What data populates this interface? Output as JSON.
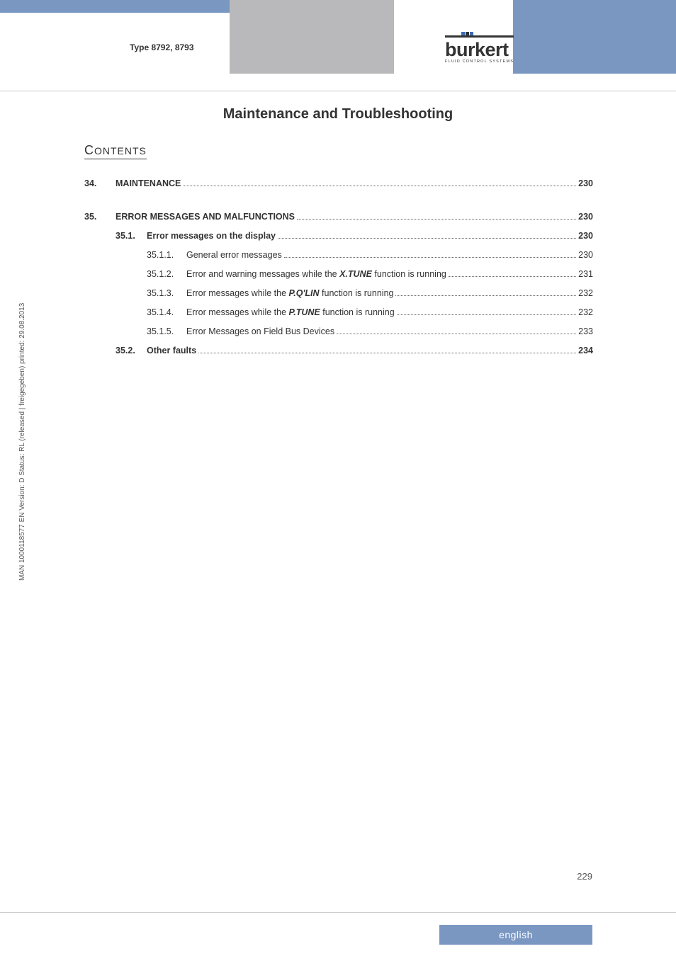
{
  "header": {
    "type_label": "Type 8792, 8793",
    "logo_text": "burkert",
    "logo_sub": "FLUID CONTROL SYSTEMS"
  },
  "title": "Maintenance and Troubleshooting",
  "contents_heading_cap": "C",
  "contents_heading_rest": "ONTENTS",
  "toc": [
    {
      "level": 1,
      "num": "34.",
      "label": "MAINTENANCE",
      "page": "230",
      "gap_after": true
    },
    {
      "level": 1,
      "num": "35.",
      "label": "ERROR MESSAGES AND MALFUNCTIONS",
      "page": "230"
    },
    {
      "level": 2,
      "num": "35.1.",
      "label": "Error messages on the display",
      "page": "230"
    },
    {
      "level": 3,
      "num": "35.1.1.",
      "label": "General error messages",
      "page": "230"
    },
    {
      "level": 3,
      "num": "35.1.2.",
      "label_pre": "Error and warning messages while the ",
      "func": "X.TUNE",
      "label_post": " function is running",
      "page": "231"
    },
    {
      "level": 3,
      "num": "35.1.3.",
      "label_pre": "Error messages while the ",
      "func": "P.Q'LIN",
      "label_post": " function is running",
      "page": "232"
    },
    {
      "level": 3,
      "num": "35.1.4.",
      "label_pre": "Error messages while the ",
      "func": "P.TUNE",
      "label_post": " function is running",
      "page": "232"
    },
    {
      "level": 3,
      "num": "35.1.5.",
      "label": "Error Messages on Field Bus Devices",
      "page": "233"
    },
    {
      "level": 2,
      "num": "35.2.",
      "label": "Other faults",
      "page": "234"
    }
  ],
  "side_text": "MAN  1000118577  EN  Version: D  Status: RL (released | freigegeben)  printed: 29.08.2013",
  "page_number": "229",
  "language": "english",
  "colors": {
    "header_blue": "#7a97c2",
    "header_gray": "#b9b9bb",
    "text": "#333333",
    "divider": "#cccccc"
  }
}
